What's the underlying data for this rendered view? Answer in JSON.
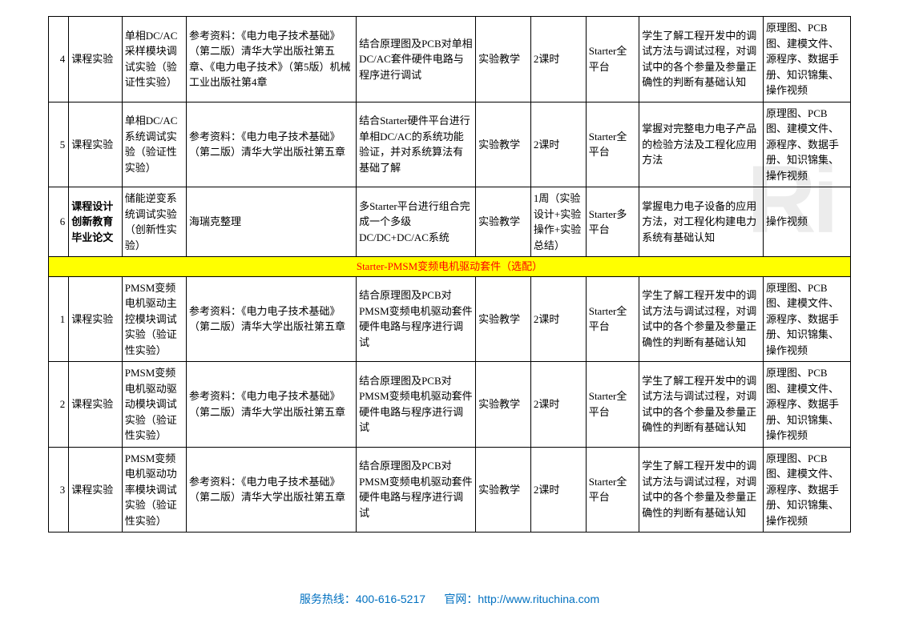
{
  "watermark": "Ri",
  "section_header": "Starter-PMSM变频电机驱动套件（选配）",
  "rows_top": [
    {
      "n": "4",
      "c1": "课程实验",
      "c2": "单相DC/AC采样模块调试实验（验证性实验）",
      "c3": "参考资料：《电力电子技术基础》（第二版）清华大学出版社第五章、《电力电子技术》（第5版）机械工业出版社第4章",
      "c4": "结合原理图及PCB对单相DC/AC套件硬件电路与程序进行调试",
      "c5": "实验教学",
      "c6": "2课时",
      "c7": "Starter全平台",
      "c8": "学生了解工程开发中的调试方法与调试过程，对调试中的各个参量及参量正确性的判断有基础认知",
      "c9": "原理图、PCB图、建模文件、源程序、数据手册、知识锦集、操作视频"
    },
    {
      "n": "5",
      "c1": "课程实验",
      "c2": "单相DC/AC系统调试实验（验证性实验）",
      "c3": "参考资料：《电力电子技术基础》（第二版）清华大学出版社第五章",
      "c4": "结合Starter硬件平台进行单相DC/AC的系统功能验证，并对系统算法有基础了解",
      "c5": "实验教学",
      "c6": "2课时",
      "c7": "Starter全平台",
      "c8": "掌握对完整电力电子产品的检验方法及工程化应用方法",
      "c9": "原理图、PCB图、建模文件、源程序、数据手册、知识锦集、操作视频"
    },
    {
      "n": "6",
      "c1": "课程设计创新教育毕业论文",
      "c1bold": true,
      "c2": "储能逆变系统调试实验（创新性实验）",
      "c3": "海瑞克整理",
      "c4": "多Starter平台进行组合完成一个多级DC/DC+DC/AC系统",
      "c5": "实验教学",
      "c6": "1周（实验设计+实验操作+实验总结）",
      "c7": "Starter多平台",
      "c8": "掌握电力电子设备的应用方法，对工程化构建电力系统有基础认知",
      "c9": "操作视频"
    }
  ],
  "rows_bottom": [
    {
      "n": "1",
      "c1": "课程实验",
      "c2": "PMSM变频电机驱动主控模块调试实验（验证性实验）",
      "c3": "参考资料：《电力电子技术基础》（第二版）清华大学出版社第五章",
      "c4": "结合原理图及PCB对PMSM变频电机驱动套件硬件电路与程序进行调试",
      "c5": "实验教学",
      "c6": "2课时",
      "c7": "Starter全平台",
      "c8": "学生了解工程开发中的调试方法与调试过程，对调试中的各个参量及参量正确性的判断有基础认知",
      "c9": "原理图、PCB图、建模文件、源程序、数据手册、知识锦集、操作视频"
    },
    {
      "n": "2",
      "c1": "课程实验",
      "c2": "PMSM变频电机驱动驱动模块调试实验（验证性实验）",
      "c3": "参考资料：《电力电子技术基础》（第二版）清华大学出版社第五章",
      "c4": "结合原理图及PCB对PMSM变频电机驱动套件硬件电路与程序进行调试",
      "c5": "实验教学",
      "c6": "2课时",
      "c7": "Starter全平台",
      "c8": "学生了解工程开发中的调试方法与调试过程，对调试中的各个参量及参量正确性的判断有基础认知",
      "c9": "原理图、PCB图、建模文件、源程序、数据手册、知识锦集、操作视频"
    },
    {
      "n": "3",
      "c1": "课程实验",
      "c2": "PMSM变频电机驱动功率模块调试实验（验证性实验）",
      "c3": "参考资料：《电力电子技术基础》（第二版）清华大学出版社第五章",
      "c4": "结合原理图及PCB对PMSM变频电机驱动套件硬件电路与程序进行调试",
      "c5": "实验教学",
      "c6": "2课时",
      "c7": "Starter全平台",
      "c8": "学生了解工程开发中的调试方法与调试过程，对调试中的各个参量及参量正确性的判断有基础认知",
      "c9": "原理图、PCB图、建模文件、源程序、数据手册、知识锦集、操作视频"
    }
  ],
  "footer": {
    "hotline_label": "服务热线：",
    "hotline": "400-616-5217",
    "web_label": "官网：",
    "web_url": "http://www.rituchina.com"
  }
}
